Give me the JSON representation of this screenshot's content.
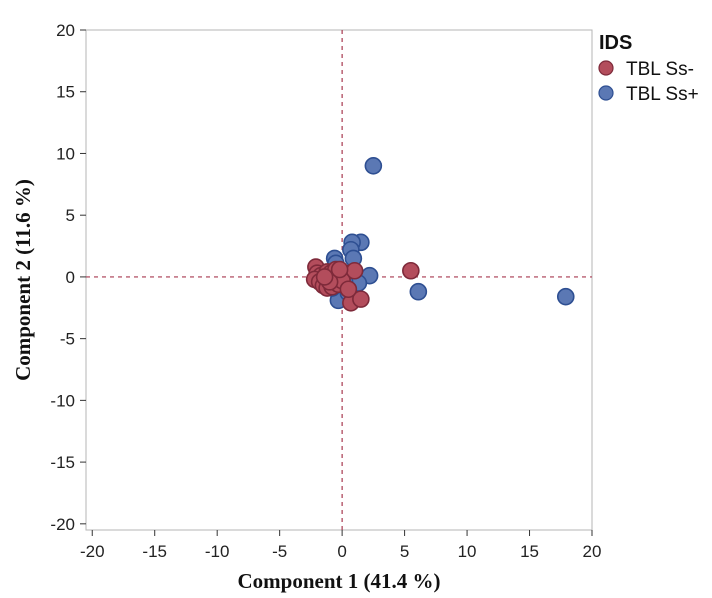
{
  "chart_data": {
    "type": "scatter",
    "xlabel": "Component 1  (41.4 %)",
    "ylabel": "Component 2  (11.6 %)",
    "xlim": [
      -20.5,
      20
    ],
    "ylim": [
      -20.5,
      20
    ],
    "x_ticks": [
      -20,
      -15,
      -10,
      -5,
      0,
      5,
      10,
      15,
      20
    ],
    "y_ticks": [
      -20,
      -15,
      -10,
      -5,
      0,
      5,
      10,
      15,
      20
    ],
    "reference_lines": {
      "x": 0,
      "y": 0,
      "style": "dashed",
      "color": "#a8384f"
    },
    "grid": false,
    "legend": {
      "title": "IDS",
      "placement": "outside-right-top"
    },
    "series": [
      {
        "name": "TBL Ss+",
        "color": "#5b78b4",
        "stroke": "#2e4f92",
        "points": [
          [
            2.5,
            9.0
          ],
          [
            1.5,
            2.8
          ],
          [
            0.8,
            2.8
          ],
          [
            0.7,
            2.2
          ],
          [
            0.9,
            1.5
          ],
          [
            -0.6,
            1.5
          ],
          [
            -0.5,
            1.1
          ],
          [
            2.2,
            0.1
          ],
          [
            6.1,
            -1.2
          ],
          [
            17.9,
            -1.6
          ],
          [
            1.3,
            -0.5
          ],
          [
            -0.3,
            -1.9
          ],
          [
            0.5,
            -1.3
          ],
          [
            -0.8,
            -0.9
          ],
          [
            0.2,
            -0.4
          ]
        ]
      },
      {
        "name": "TBL Ss-",
        "color": "#b34d5c",
        "stroke": "#7e2a3a",
        "points": [
          [
            -2.1,
            0.8
          ],
          [
            -2.0,
            0.3
          ],
          [
            -1.7,
            0.1
          ],
          [
            -1.2,
            0.4
          ],
          [
            -0.9,
            0.3
          ],
          [
            -0.5,
            0.6
          ],
          [
            -0.2,
            0.2
          ],
          [
            0.2,
            0.3
          ],
          [
            1.0,
            0.5
          ],
          [
            5.5,
            0.5
          ],
          [
            -2.2,
            -0.2
          ],
          [
            -1.8,
            -0.4
          ],
          [
            -1.5,
            -0.7
          ],
          [
            -1.2,
            -0.9
          ],
          [
            -0.8,
            -0.8
          ],
          [
            -0.6,
            -0.2
          ],
          [
            -0.3,
            -0.6
          ],
          [
            0.0,
            -0.3
          ],
          [
            -1.0,
            -0.4
          ],
          [
            0.7,
            -2.1
          ],
          [
            1.5,
            -1.8
          ],
          [
            -0.2,
            0.6
          ],
          [
            -1.4,
            0.0
          ],
          [
            0.5,
            -1.0
          ]
        ]
      }
    ]
  }
}
